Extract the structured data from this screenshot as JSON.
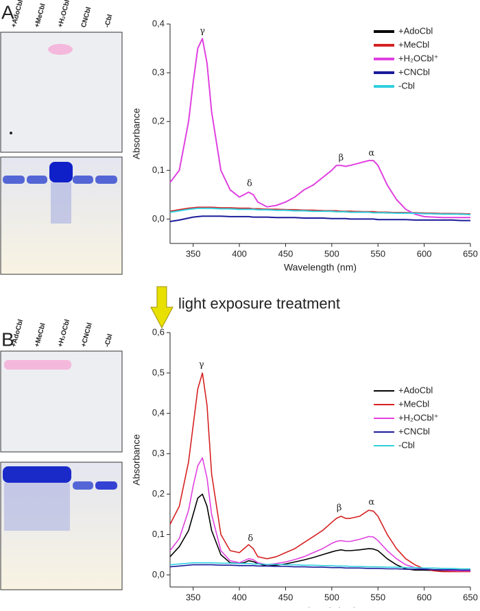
{
  "figure": {
    "panel_labels": [
      "A",
      "B"
    ],
    "lanes_a": [
      "+AdoCbl",
      "+MeCbl",
      "+H₂OCbl",
      "CNCbl",
      "-Cbl"
    ],
    "lanes_b": [
      "+AdoCbl",
      "+MeCbl",
      "+H₂OCbl",
      "+CNCbl",
      "-Cbl"
    ],
    "treatment": "light exposure treatment"
  },
  "chart_data": [
    {
      "type": "line",
      "x_label": "Wavelength (nm)",
      "y_label": "Absorbance",
      "x": [
        325,
        335,
        345,
        350,
        355,
        360,
        365,
        370,
        380,
        390,
        400,
        405,
        410,
        415,
        420,
        430,
        440,
        450,
        460,
        470,
        480,
        490,
        500,
        505,
        510,
        515,
        520,
        530,
        540,
        545,
        550,
        560,
        570,
        580,
        590,
        600,
        610,
        620,
        630,
        640,
        650
      ],
      "xlim": [
        325,
        650
      ],
      "xticks": [
        350,
        400,
        450,
        500,
        550,
        600,
        650
      ],
      "ylim": [
        -0.05,
        0.4
      ],
      "yticks": [
        {
          "value": 0,
          "label": "0,0"
        },
        {
          "value": 0.1,
          "label": "0,1"
        },
        {
          "value": 0.2,
          "label": "0,2"
        },
        {
          "value": 0.3,
          "label": "0,3"
        },
        {
          "value": 0.4,
          "label": "0,4"
        }
      ],
      "legend": "upper right",
      "series": [
        {
          "name": "+AdoCbl",
          "color": "#000000",
          "values": [
            0.015,
            0.018,
            0.021,
            0.022,
            0.023,
            0.023,
            0.023,
            0.023,
            0.022,
            0.022,
            0.021,
            0.021,
            0.021,
            0.021,
            0.02,
            0.02,
            0.019,
            0.019,
            0.018,
            0.018,
            0.017,
            0.017,
            0.016,
            0.016,
            0.016,
            0.015,
            0.015,
            0.015,
            0.014,
            0.014,
            0.014,
            0.013,
            0.013,
            0.013,
            0.012,
            0.012,
            0.011,
            0.011,
            0.011,
            0.01,
            0.01
          ]
        },
        {
          "name": "+MeCbl",
          "color": "#d62020",
          "values": [
            0.016,
            0.019,
            0.022,
            0.023,
            0.024,
            0.024,
            0.024,
            0.024,
            0.023,
            0.023,
            0.022,
            0.022,
            0.022,
            0.021,
            0.021,
            0.02,
            0.02,
            0.019,
            0.019,
            0.018,
            0.018,
            0.017,
            0.017,
            0.017,
            0.016,
            0.016,
            0.016,
            0.015,
            0.015,
            0.015,
            0.014,
            0.014,
            0.013,
            0.013,
            0.013,
            0.012,
            0.012,
            0.011,
            0.011,
            0.011,
            0.01
          ]
        },
        {
          "name": "+H₂OCbl⁺",
          "color": "#e040e0",
          "values": [
            0.075,
            0.1,
            0.2,
            0.28,
            0.35,
            0.37,
            0.32,
            0.22,
            0.1,
            0.06,
            0.045,
            0.05,
            0.055,
            0.05,
            0.035,
            0.025,
            0.028,
            0.035,
            0.045,
            0.06,
            0.07,
            0.085,
            0.1,
            0.11,
            0.11,
            0.108,
            0.11,
            0.115,
            0.12,
            0.12,
            0.11,
            0.07,
            0.04,
            0.02,
            0.01,
            0.005,
            0.004,
            0.003,
            0.003,
            0.003,
            0.003
          ]
        },
        {
          "name": "+CNCbl",
          "color": "#1a1a9a",
          "values": [
            -0.005,
            -0.002,
            0.002,
            0.004,
            0.005,
            0.006,
            0.006,
            0.006,
            0.006,
            0.005,
            0.005,
            0.005,
            0.005,
            0.004,
            0.004,
            0.004,
            0.003,
            0.003,
            0.003,
            0.002,
            0.002,
            0.002,
            0.001,
            0.001,
            0.001,
            0.001,
            0.0,
            0.0,
            0.0,
            0.0,
            -0.001,
            -0.001,
            -0.001,
            -0.001,
            -0.002,
            -0.002,
            -0.002,
            -0.002,
            -0.002,
            -0.003,
            -0.003
          ]
        },
        {
          "name": "-Cbl",
          "color": "#30d0e0",
          "values": [
            0.014,
            0.017,
            0.02,
            0.021,
            0.022,
            0.022,
            0.022,
            0.022,
            0.021,
            0.021,
            0.02,
            0.02,
            0.02,
            0.02,
            0.019,
            0.019,
            0.018,
            0.018,
            0.017,
            0.017,
            0.016,
            0.016,
            0.016,
            0.015,
            0.015,
            0.015,
            0.014,
            0.014,
            0.014,
            0.013,
            0.013,
            0.013,
            0.012,
            0.012,
            0.012,
            0.011,
            0.011,
            0.01,
            0.01,
            0.01,
            0.009
          ]
        }
      ],
      "annotations": [
        {
          "text": "γ",
          "x": 360,
          "y": 0.385
        },
        {
          "text": "δ",
          "x": 411,
          "y": 0.072
        },
        {
          "text": "β",
          "x": 510,
          "y": 0.125
        },
        {
          "text": "α",
          "x": 543,
          "y": 0.135
        }
      ]
    },
    {
      "type": "line",
      "x_label": "Wavelength (nm)",
      "y_label": "Absorbance",
      "x": [
        325,
        335,
        345,
        350,
        355,
        360,
        365,
        370,
        380,
        390,
        400,
        405,
        410,
        415,
        420,
        430,
        440,
        450,
        460,
        470,
        480,
        490,
        500,
        505,
        510,
        515,
        520,
        530,
        540,
        545,
        550,
        560,
        570,
        580,
        590,
        600,
        610,
        620,
        630,
        640,
        650
      ],
      "xlim": [
        325,
        650
      ],
      "xticks": [
        350,
        400,
        450,
        500,
        550,
        600,
        650
      ],
      "ylim": [
        -0.03,
        0.6
      ],
      "yticks": [
        {
          "value": 0,
          "label": "0,0"
        },
        {
          "value": 0.1,
          "label": "0,1"
        },
        {
          "value": 0.2,
          "label": "0,2"
        },
        {
          "value": 0.3,
          "label": "0,3"
        },
        {
          "value": 0.4,
          "label": "0,4"
        },
        {
          "value": 0.5,
          "label": "0,5"
        },
        {
          "value": 0.6,
          "label": "0,6"
        }
      ],
      "legend": "upper right",
      "series": [
        {
          "name": "+AdoCbl",
          "color": "#000000",
          "values": [
            0.045,
            0.07,
            0.11,
            0.15,
            0.19,
            0.2,
            0.17,
            0.11,
            0.05,
            0.03,
            0.028,
            0.03,
            0.035,
            0.033,
            0.028,
            0.022,
            0.024,
            0.027,
            0.032,
            0.037,
            0.043,
            0.05,
            0.057,
            0.06,
            0.062,
            0.06,
            0.06,
            0.062,
            0.065,
            0.064,
            0.06,
            0.04,
            0.025,
            0.015,
            0.012,
            0.012,
            0.011,
            0.011,
            0.01,
            0.01,
            0.01
          ]
        },
        {
          "name": "+MeCbl",
          "color": "#d62020",
          "values": [
            0.125,
            0.17,
            0.28,
            0.37,
            0.46,
            0.5,
            0.42,
            0.25,
            0.1,
            0.06,
            0.055,
            0.065,
            0.075,
            0.065,
            0.045,
            0.04,
            0.045,
            0.055,
            0.065,
            0.08,
            0.095,
            0.11,
            0.13,
            0.14,
            0.145,
            0.14,
            0.14,
            0.145,
            0.16,
            0.158,
            0.145,
            0.1,
            0.065,
            0.04,
            0.025,
            0.015,
            0.01,
            0.008,
            0.008,
            0.008,
            0.008
          ]
        },
        {
          "name": "+H₂OCbl⁺",
          "color": "#e040e0",
          "values": [
            0.06,
            0.09,
            0.16,
            0.22,
            0.27,
            0.29,
            0.24,
            0.15,
            0.06,
            0.035,
            0.03,
            0.035,
            0.04,
            0.038,
            0.03,
            0.025,
            0.028,
            0.032,
            0.038,
            0.045,
            0.055,
            0.065,
            0.078,
            0.083,
            0.085,
            0.083,
            0.083,
            0.088,
            0.095,
            0.094,
            0.085,
            0.06,
            0.04,
            0.025,
            0.018,
            0.015,
            0.013,
            0.012,
            0.011,
            0.01,
            0.01
          ]
        },
        {
          "name": "+CNCbl",
          "color": "#1a1a9a",
          "values": [
            0.02,
            0.022,
            0.024,
            0.025,
            0.025,
            0.025,
            0.025,
            0.025,
            0.024,
            0.024,
            0.023,
            0.023,
            0.023,
            0.023,
            0.022,
            0.022,
            0.021,
            0.021,
            0.02,
            0.02,
            0.019,
            0.019,
            0.018,
            0.018,
            0.018,
            0.017,
            0.017,
            0.017,
            0.016,
            0.016,
            0.016,
            0.015,
            0.015,
            0.014,
            0.014,
            0.014,
            0.013,
            0.013,
            0.013,
            0.012,
            0.012
          ]
        },
        {
          "name": "-Cbl",
          "color": "#30d0e0",
          "values": [
            0.025,
            0.027,
            0.029,
            0.03,
            0.03,
            0.03,
            0.03,
            0.03,
            0.029,
            0.029,
            0.028,
            0.028,
            0.028,
            0.027,
            0.027,
            0.026,
            0.026,
            0.025,
            0.025,
            0.024,
            0.024,
            0.023,
            0.023,
            0.022,
            0.022,
            0.022,
            0.021,
            0.021,
            0.02,
            0.02,
            0.02,
            0.019,
            0.019,
            0.018,
            0.018,
            0.017,
            0.017,
            0.016,
            0.016,
            0.015,
            0.015
          ]
        }
      ],
      "annotations": [
        {
          "text": "γ",
          "x": 359,
          "y": 0.52
        },
        {
          "text": "δ",
          "x": 412,
          "y": 0.09
        },
        {
          "text": "β",
          "x": 508,
          "y": 0.165
        },
        {
          "text": "α",
          "x": 543,
          "y": 0.18
        }
      ]
    }
  ]
}
